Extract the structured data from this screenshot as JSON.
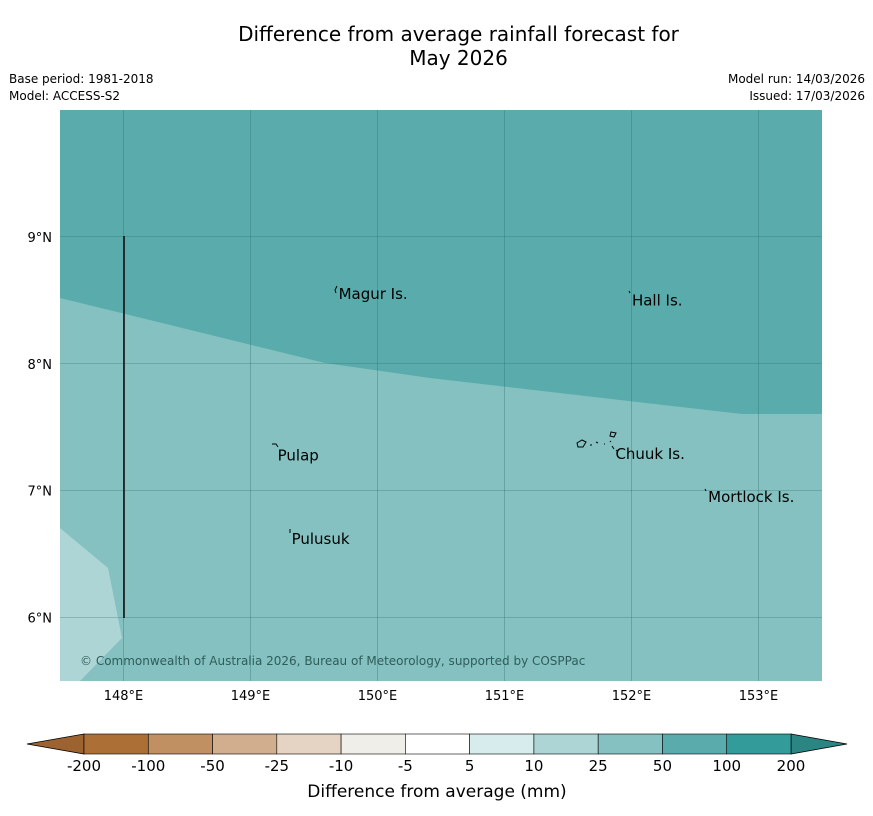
{
  "title": {
    "line1": "Difference from average rainfall forecast for",
    "line2": "May 2026"
  },
  "meta": {
    "base_period": "Base period: 1981-2018",
    "model": "Model: ACCESS-S2",
    "model_run": "Model run: 14/03/2026",
    "issued": "Issued: 17/03/2026"
  },
  "map": {
    "lon_range": [
      147.5,
      153.5
    ],
    "lat_range": [
      5.5,
      10.0
    ],
    "lon_ticks": [
      "148°E",
      "149°E",
      "150°E",
      "151°E",
      "152°E",
      "153°E"
    ],
    "lat_ticks": [
      "9°N",
      "8°N",
      "7°N",
      "6°N"
    ],
    "places": [
      {
        "name": "Magur Is.",
        "lon": 149.67,
        "lat": 8.58
      },
      {
        "name": "Hall Is.",
        "lon": 151.98,
        "lat": 8.53
      },
      {
        "name": "Pulap",
        "lon": 149.19,
        "lat": 7.31
      },
      {
        "name": "Chuuk Is.",
        "lon": 151.85,
        "lat": 7.32
      },
      {
        "name": "Mortlock Is.",
        "lon": 152.58,
        "lat": 6.98
      },
      {
        "name": "Pulusuk",
        "lon": 149.3,
        "lat": 6.65
      }
    ],
    "copyright": "© Commonwealth of Australia 2026, Bureau of Meteorology, supported by COSPPac",
    "region_colors": {
      "50_to_100": "#5aabab",
      "25_to_50": "#84c1c0",
      "10_to_25": "#aed5d5"
    }
  },
  "colorbar": {
    "title": "Difference from average (mm)",
    "labels": [
      "-200",
      "-100",
      "-50",
      "-25",
      "-10",
      "-5",
      "5",
      "10",
      "25",
      "50",
      "100",
      "200"
    ],
    "colors": [
      "#ac6f36",
      "#c09062",
      "#d1ae8e",
      "#e5d4c3",
      "#f0eee9",
      "#ffffff",
      "#d7ecec",
      "#aed5d5",
      "#84c1c0",
      "#5aabab",
      "#339b99"
    ],
    "under_color": "#9c6330",
    "over_color": "#2a8583"
  }
}
